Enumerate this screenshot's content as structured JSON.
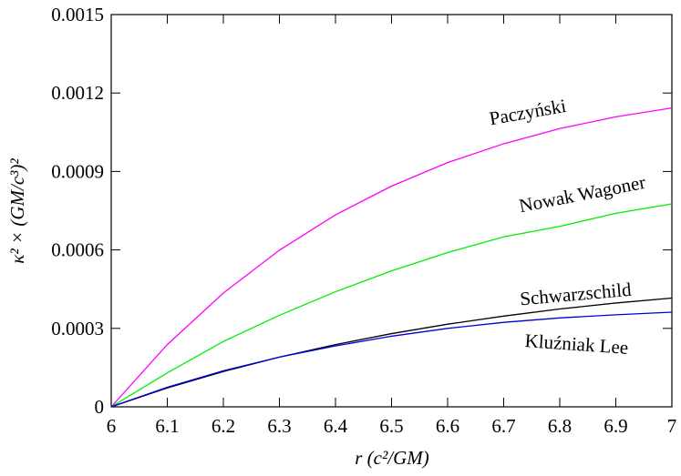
{
  "chart_data": {
    "type": "line",
    "x_label": "r (c²/GM)",
    "y_label": "κ² × (GM/c³)²",
    "x": [
      6,
      6.1,
      6.2,
      6.3,
      6.4,
      6.5,
      6.6,
      6.7,
      6.8,
      6.9,
      7
    ],
    "series": [
      {
        "name": "Paczyński",
        "color": "#ff00ff",
        "values": [
          0,
          0.000238,
          0.000435,
          0.000599,
          0.000734,
          0.000844,
          0.000934,
          0.001006,
          0.001064,
          0.001109,
          0.001143
        ]
      },
      {
        "name": "Nowak Wagoner",
        "color": "#00ee00",
        "values": [
          0,
          0.00013,
          0.00025,
          0.00035,
          0.00044,
          0.00052,
          0.00059,
          0.00065,
          0.00069,
          0.00074,
          0.000776
        ]
      },
      {
        "name": "Schwarzschild",
        "color": "#000000",
        "values": [
          0,
          7.22e-05,
          0.000135,
          0.00019,
          0.000238,
          0.00028,
          0.000316,
          0.000347,
          0.000374,
          0.000397,
          0.000416
        ]
      },
      {
        "name": "Kluźniak Lee",
        "color": "#0000dd",
        "values": [
          0,
          7.5e-05,
          0.000138,
          0.00019,
          0.000233,
          0.00027,
          0.0003,
          0.000323,
          0.00034,
          0.000352,
          0.000362
        ]
      }
    ],
    "xlim": [
      6,
      7
    ],
    "ylim": [
      0,
      0.0015
    ],
    "xticks": [
      6,
      6.1,
      6.2,
      6.3,
      6.4,
      6.5,
      6.6,
      6.7,
      6.8,
      6.9,
      7
    ],
    "yticks": [
      0,
      0.0003,
      0.0006,
      0.0009,
      0.0012,
      0.0015
    ]
  }
}
